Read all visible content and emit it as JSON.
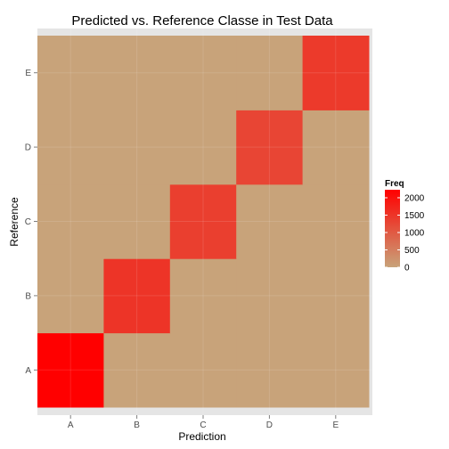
{
  "chart_data": {
    "type": "heatmap",
    "title": "Predicted vs. Reference Classe in Test Data",
    "xlabel": "Prediction",
    "ylabel": "Reference",
    "x_categories": [
      "A",
      "B",
      "C",
      "D",
      "E"
    ],
    "y_categories": [
      "A",
      "B",
      "C",
      "D",
      "E"
    ],
    "values": [
      [
        2230,
        0,
        0,
        0,
        0
      ],
      [
        0,
        1518,
        0,
        0,
        0
      ],
      [
        0,
        0,
        1368,
        0,
        0
      ],
      [
        0,
        0,
        0,
        1286,
        0
      ],
      [
        0,
        0,
        0,
        0,
        1442
      ]
    ],
    "values_note_axes": "rows = Reference (A..E), columns = Prediction (A..E)",
    "legend": {
      "title": "Freq",
      "ticks": [
        0,
        500,
        1000,
        1500,
        2000
      ],
      "range": [
        0,
        2230
      ],
      "position": "right"
    },
    "colors": {
      "low": "#c8a37a",
      "high": "#ff0000",
      "panel_background": "#e5e5e5",
      "gridline": "#ffffff"
    },
    "grid": true
  }
}
